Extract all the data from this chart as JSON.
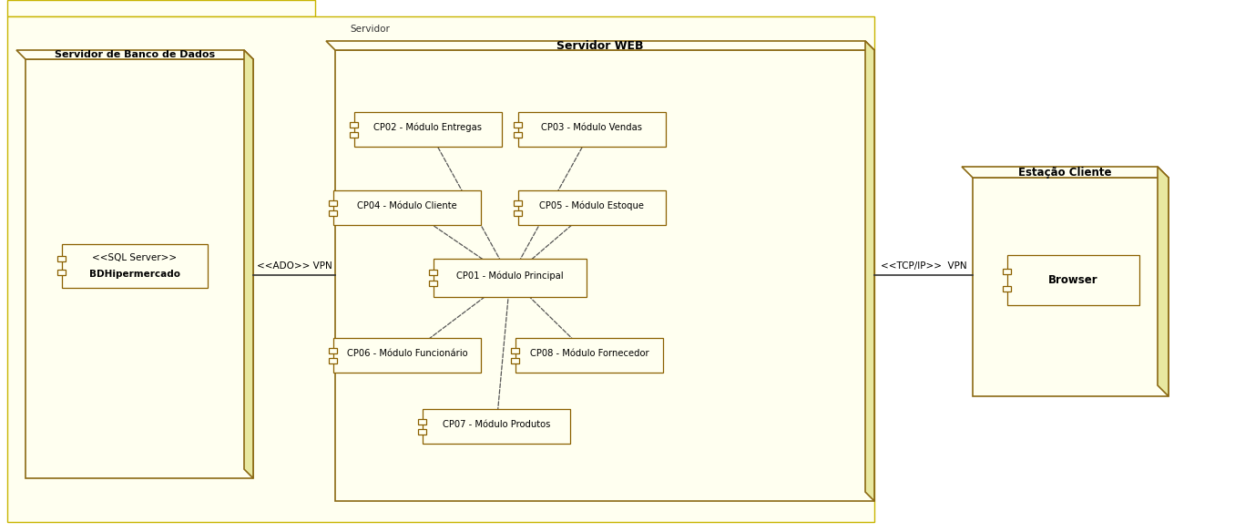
{
  "bg_fill": "#fffff8",
  "bg_fill2": "#ffffd0",
  "border_dark": "#8b7000",
  "border_mid": "#b8960c",
  "outer_label": "Servidor",
  "db_server_label": "Servidor de Banco de Dados",
  "db_component_label1": "<<SQL Server>>",
  "db_component_label2": "BDHipermercado",
  "web_server_label": "Servidor WEB",
  "client_label": "Estação Cliente",
  "browser_label": "Browser",
  "ado_label": "<<ADO>> VPN",
  "tcp_label": "<<TCP/IP>>  VPN",
  "mod_cp02": "CP02 - Módulo Entregas",
  "mod_cp03": "CP03 - Módulo Vendas",
  "mod_cp04": "CP04 - Módulo Cliente",
  "mod_cp05": "CP05 - Módulo Estoque",
  "mod_cp01": "CP01 - Módulo Principal",
  "mod_cp06": "CP06 - Módulo Funcionário",
  "mod_cp08": "CP08 - Módulo Fornecedor",
  "mod_cp07": "CP07 - Módulo Produtos"
}
